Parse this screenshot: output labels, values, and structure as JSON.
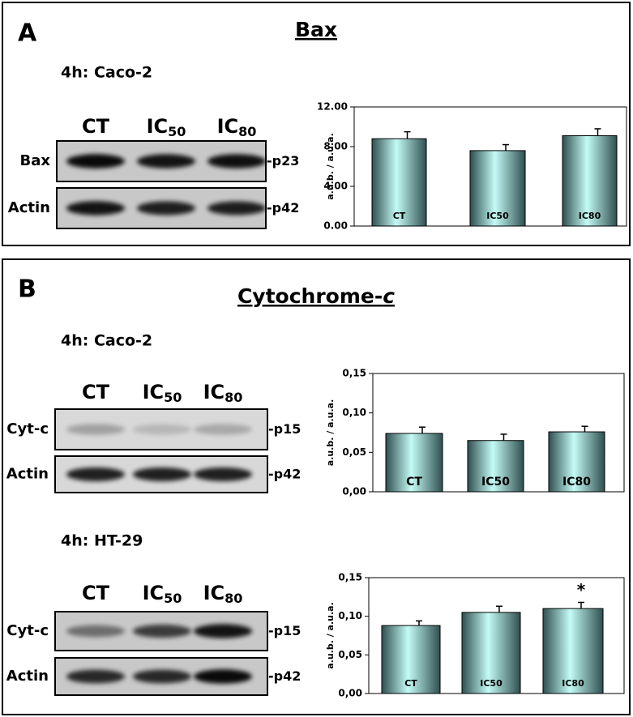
{
  "panels": [
    {
      "letter": "A",
      "title": "Bax",
      "title_italic": "",
      "blots": [
        {
          "cell_line": "4h: Caco-2",
          "lanes": [
            {
              "text": "CT",
              "sub": ""
            },
            {
              "text": "IC",
              "sub": "50"
            },
            {
              "text": "IC",
              "sub": "80"
            }
          ],
          "rows": [
            {
              "name": "Bax",
              "weight": "p23"
            },
            {
              "name": "Actin",
              "weight": "p42"
            }
          ]
        }
      ]
    },
    {
      "letter": "B",
      "title": "Cytochrome-",
      "title_italic": "c",
      "blots": [
        {
          "cell_line": "4h: Caco-2",
          "lanes": [
            {
              "text": "CT",
              "sub": ""
            },
            {
              "text": "IC",
              "sub": "50"
            },
            {
              "text": "IC",
              "sub": "80"
            }
          ],
          "rows": [
            {
              "name": "Cyt-c",
              "weight": "p15"
            },
            {
              "name": "Actin",
              "weight": "p42"
            }
          ]
        },
        {
          "cell_line": "4h: HT-29",
          "lanes": [
            {
              "text": "CT",
              "sub": ""
            },
            {
              "text": "IC",
              "sub": "50"
            },
            {
              "text": "IC",
              "sub": "80"
            }
          ],
          "rows": [
            {
              "name": "Cyt-c",
              "weight": "p15"
            },
            {
              "name": "Actin",
              "weight": "p42"
            }
          ]
        }
      ]
    }
  ],
  "chart_data": [
    {
      "type": "bar",
      "ylabel": "a.u.b. / a.u.a.",
      "categories": [
        "CT",
        "IC50",
        "IC80"
      ],
      "values": [
        8.8,
        7.6,
        9.1
      ],
      "errors": [
        0.7,
        0.6,
        0.7
      ],
      "color": "#c4fbf6",
      "ylim": [
        0,
        12
      ],
      "yticks": [
        {
          "value": 0,
          "label": "0.00"
        },
        {
          "value": 4,
          "label": "4.00"
        },
        {
          "value": 8,
          "label": "8.00"
        },
        {
          "value": 12,
          "label": "12.00"
        }
      ],
      "grid": false
    },
    {
      "type": "bar",
      "ylabel": "a.u.b. / a.u.a.",
      "categories": [
        "CT",
        "IC50",
        "IC80"
      ],
      "values": [
        0.074,
        0.065,
        0.076
      ],
      "errors": [
        0.008,
        0.008,
        0.007
      ],
      "color": "#c4fbf6",
      "ylim": [
        0,
        0.15
      ],
      "yticks": [
        {
          "value": 0,
          "label": "0,00"
        },
        {
          "value": 0.05,
          "label": "0,05"
        },
        {
          "value": 0.1,
          "label": "0,10"
        },
        {
          "value": 0.15,
          "label": "0,15"
        }
      ],
      "grid": false
    },
    {
      "type": "bar",
      "ylabel": "a.u.b. / a.u.a.",
      "categories": [
        "CT",
        "IC50",
        "IC80"
      ],
      "values": [
        0.088,
        0.105,
        0.11
      ],
      "errors": [
        0.006,
        0.008,
        0.008
      ],
      "color": "#c4fbf6",
      "ylim": [
        0,
        0.15
      ],
      "yticks": [
        {
          "value": 0,
          "label": "0,00"
        },
        {
          "value": 0.05,
          "label": "0,05"
        },
        {
          "value": 0.1,
          "label": "0,10"
        },
        {
          "value": 0.15,
          "label": "0,15"
        }
      ],
      "grid": false,
      "annotations": [
        {
          "text": "*",
          "category": "IC80"
        }
      ]
    }
  ]
}
